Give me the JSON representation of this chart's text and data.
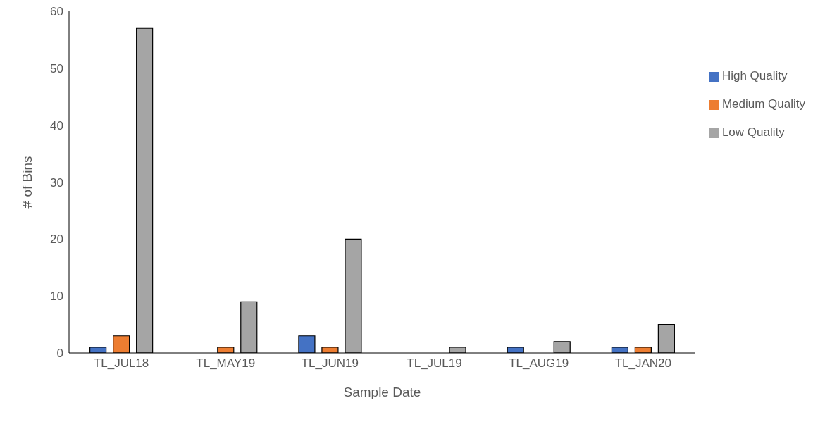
{
  "chart_data": {
    "type": "bar",
    "xlabel": "Sample Date",
    "ylabel": "# of Bins",
    "categories": [
      "TL_JUL18",
      "TL_MAY19",
      "TL_JUN19",
      "TL_JUL19",
      "TL_AUG19",
      "TL_JAN20"
    ],
    "series": [
      {
        "name": "High Quality",
        "color": "#4472c4",
        "values": [
          1,
          0,
          3,
          0,
          1,
          1
        ]
      },
      {
        "name": "Medium Quality",
        "color": "#ed7d31",
        "values": [
          3,
          1,
          1,
          0,
          0,
          1
        ]
      },
      {
        "name": "Low Quality",
        "color": "#a5a5a5",
        "values": [
          57,
          9,
          20,
          1,
          2,
          5
        ]
      }
    ],
    "ylim": [
      0,
      60
    ],
    "yticks": [
      0,
      10,
      20,
      30,
      40,
      50,
      60
    ],
    "grid": false,
    "legend": "right"
  }
}
